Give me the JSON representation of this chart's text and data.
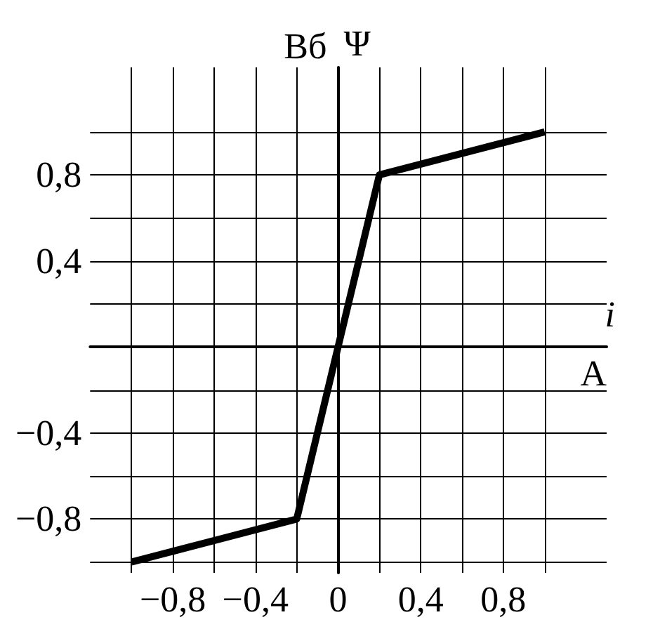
{
  "chart_data": {
    "type": "line",
    "xlabel": "i",
    "ylabel": "Ψ",
    "annotations": [
      "Вб",
      "А"
    ],
    "x": [
      -1.0,
      -0.2,
      0,
      0.2,
      1.0
    ],
    "series": [
      {
        "color": "#000000",
        "values": [
          -1.0,
          -0.8,
          0,
          0.8,
          1.0
        ]
      }
    ],
    "xlim": [
      -1.2,
      1.3
    ],
    "ylim": [
      -1.05,
      1.3
    ],
    "xticks": [
      {
        "value": -1.0,
        "label": null
      },
      {
        "value": -0.8,
        "label": "−0,8"
      },
      {
        "value": -0.6,
        "label": null
      },
      {
        "value": -0.4,
        "label": "−0,4"
      },
      {
        "value": -0.2,
        "label": null
      },
      {
        "value": 0,
        "label": "0"
      },
      {
        "value": 0.2,
        "label": null
      },
      {
        "value": 0.4,
        "label": "0,4"
      },
      {
        "value": 0.6,
        "label": null
      },
      {
        "value": 0.8,
        "label": "0,8"
      },
      {
        "value": 1.0,
        "label": null
      }
    ],
    "yticks": [
      {
        "value": -1.0,
        "label": null
      },
      {
        "value": -0.8,
        "label": "−0,8"
      },
      {
        "value": -0.6,
        "label": null
      },
      {
        "value": -0.4,
        "label": "−0,4"
      },
      {
        "value": -0.2,
        "label": null
      },
      {
        "value": 0,
        "label": null
      },
      {
        "value": 0.2,
        "label": null
      },
      {
        "value": 0.4,
        "label": "0,4"
      },
      {
        "value": 0.6,
        "label": null
      },
      {
        "value": 0.8,
        "label": "0,8"
      },
      {
        "value": 1.0,
        "label": null
      }
    ],
    "grid": true,
    "marker": "none",
    "line_style": "solid"
  }
}
